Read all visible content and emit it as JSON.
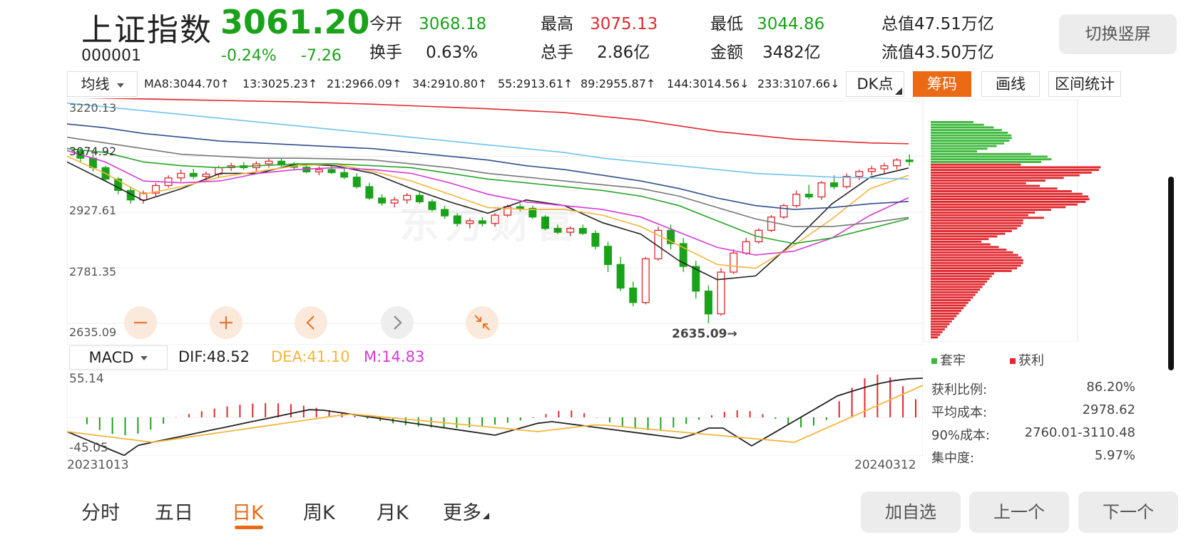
{
  "header": {
    "name": "上证指数",
    "code": "000001",
    "price": "3061.20",
    "change_pct": "-0.24%",
    "change_abs": "-7.26",
    "switch_button": "切换竖屏",
    "stats": [
      {
        "label": "今开",
        "value": "3068.18",
        "color": "#1aa21a"
      },
      {
        "label": "最高",
        "value": "3075.13",
        "color": "#e0282e"
      },
      {
        "label": "最低",
        "value": "3044.86",
        "color": "#1aa21a"
      },
      {
        "label": "总值",
        "value": "47.51万亿",
        "color": "#222222"
      },
      {
        "label": "换手",
        "value": "0.63%",
        "color": "#222222"
      },
      {
        "label": "总手",
        "value": "2.86亿",
        "color": "#222222"
      },
      {
        "label": "金额",
        "value": "3482亿",
        "color": "#222222"
      },
      {
        "label": "流值",
        "value": "43.50万亿",
        "color": "#222222"
      }
    ]
  },
  "toolbar": {
    "ma_select": "均线",
    "ma_items": [
      {
        "text": "MA8:3044.70↑",
        "color": "#333333"
      },
      {
        "text": "13:3025.23↑",
        "color": "#f5b53a"
      },
      {
        "text": "21:2966.09↑",
        "color": "#d63ad6"
      },
      {
        "text": "34:2910.80↑",
        "color": "#28a428"
      },
      {
        "text": "55:2913.61↑",
        "color": "#777777"
      },
      {
        "text": "89:2955.87↑",
        "color": "#2f4f8f"
      },
      {
        "text": "144:3014.56↓",
        "color": "#6ec3f0"
      },
      {
        "text": "233:3107.66↓",
        "color": "#e0282e"
      }
    ],
    "dk_button": "DK点",
    "chip_button": "筹码",
    "draw_button": "画线",
    "range_button": "区间统计"
  },
  "chart_data": [
    {
      "type": "candlestick",
      "title": "",
      "y_axis_labels": [
        "3220.13",
        "3074.92",
        "2927.61",
        "2781.35",
        "2635.09"
      ],
      "ylim": [
        2635.09,
        3220.13
      ],
      "low_annotation": "2635.09",
      "x_start": "20231013",
      "x_end": "20240312",
      "candles": [
        [
          3088,
          3095,
          3060,
          3070
        ],
        [
          3070,
          3080,
          3035,
          3045
        ],
        [
          3045,
          3050,
          3010,
          3015
        ],
        [
          3015,
          3020,
          2975,
          2985
        ],
        [
          2985,
          2995,
          2950,
          2960
        ],
        [
          2960,
          2985,
          2950,
          2978
        ],
        [
          2978,
          3005,
          2970,
          2998
        ],
        [
          2998,
          3025,
          2992,
          3018
        ],
        [
          3018,
          3040,
          3008,
          3030
        ],
        [
          3030,
          3042,
          3015,
          3022
        ],
        [
          3022,
          3035,
          3010,
          3028
        ],
        [
          3028,
          3050,
          3020,
          3045
        ],
        [
          3045,
          3058,
          3036,
          3050
        ],
        [
          3050,
          3060,
          3040,
          3045
        ],
        [
          3045,
          3062,
          3035,
          3055
        ],
        [
          3055,
          3070,
          3045,
          3062
        ],
        [
          3062,
          3070,
          3048,
          3052
        ],
        [
          3052,
          3060,
          3040,
          3046
        ],
        [
          3046,
          3054,
          3030,
          3034
        ],
        [
          3034,
          3048,
          3025,
          3040
        ],
        [
          3040,
          3050,
          3028,
          3032
        ],
        [
          3032,
          3042,
          3015,
          3020
        ],
        [
          3020,
          3030,
          2990,
          2995
        ],
        [
          2995,
          3005,
          2960,
          2965
        ],
        [
          2965,
          2975,
          2945,
          2952
        ],
        [
          2952,
          2968,
          2940,
          2960
        ],
        [
          2960,
          2978,
          2950,
          2972
        ],
        [
          2972,
          2980,
          2950,
          2955
        ],
        [
          2955,
          2962,
          2930,
          2935
        ],
        [
          2935,
          2945,
          2910,
          2918
        ],
        [
          2918,
          2925,
          2890,
          2898
        ],
        [
          2898,
          2912,
          2885,
          2905
        ],
        [
          2905,
          2915,
          2890,
          2898
        ],
        [
          2898,
          2925,
          2890,
          2920
        ],
        [
          2920,
          2948,
          2915,
          2942
        ],
        [
          2942,
          2950,
          2930,
          2938
        ],
        [
          2938,
          2945,
          2910,
          2915
        ],
        [
          2915,
          2920,
          2880,
          2885
        ],
        [
          2885,
          2895,
          2870,
          2875
        ],
        [
          2875,
          2890,
          2865,
          2885
        ],
        [
          2885,
          2895,
          2868,
          2872
        ],
        [
          2872,
          2880,
          2830,
          2838
        ],
        [
          2838,
          2850,
          2770,
          2790
        ],
        [
          2790,
          2810,
          2720,
          2728
        ],
        [
          2728,
          2745,
          2680,
          2690
        ],
        [
          2690,
          2810,
          2685,
          2805
        ],
        [
          2805,
          2890,
          2800,
          2880
        ],
        [
          2880,
          2895,
          2830,
          2845
        ],
        [
          2845,
          2860,
          2770,
          2785
        ],
        [
          2785,
          2800,
          2700,
          2720
        ],
        [
          2720,
          2735,
          2635,
          2660
        ],
        [
          2660,
          2780,
          2655,
          2770
        ],
        [
          2770,
          2830,
          2765,
          2820
        ],
        [
          2820,
          2860,
          2815,
          2850
        ],
        [
          2850,
          2885,
          2845,
          2880
        ],
        [
          2880,
          2920,
          2875,
          2915
        ],
        [
          2915,
          2950,
          2910,
          2945
        ],
        [
          2945,
          2985,
          2940,
          2975
        ],
        [
          2975,
          3000,
          2962,
          2968
        ],
        [
          2968,
          3010,
          2960,
          3005
        ],
        [
          3005,
          3025,
          2988,
          2995
        ],
        [
          2995,
          3030,
          2990,
          3022
        ],
        [
          3022,
          3040,
          3012,
          3035
        ],
        [
          3035,
          3050,
          3025,
          3042
        ],
        [
          3042,
          3058,
          3030,
          3050
        ],
        [
          3050,
          3070,
          3040,
          3065
        ],
        [
          3065,
          3080,
          3050,
          3061
        ]
      ],
      "ma_series": [
        {
          "name": "MA8",
          "color": "#222222",
          "values": [
            3060,
            3010,
            2958,
            2990,
            3030,
            3030,
            3055,
            3050,
            3030,
            2990,
            2955,
            2925,
            2960,
            2945,
            2900,
            2870,
            2800,
            2750,
            2760,
            2850,
            2950,
            3020,
            3044
          ]
        },
        {
          "name": "13",
          "color": "#f5b53a",
          "values": [
            3075,
            3030,
            2975,
            2995,
            3020,
            3035,
            3050,
            3055,
            3035,
            3010,
            2975,
            2940,
            2935,
            2935,
            2920,
            2890,
            2840,
            2790,
            2780,
            2840,
            2910,
            2990,
            3025
          ]
        },
        {
          "name": "21",
          "color": "#d63ad6",
          "values": [
            3090,
            3060,
            3010,
            3005,
            3010,
            3030,
            3040,
            3045,
            3040,
            3030,
            3005,
            2975,
            2955,
            2945,
            2935,
            2915,
            2875,
            2835,
            2815,
            2825,
            2860,
            2920,
            2966
          ]
        },
        {
          "name": "34",
          "color": "#28a428",
          "values": [
            3095,
            3085,
            3060,
            3050,
            3045,
            3050,
            3055,
            3055,
            3050,
            3045,
            3030,
            3015,
            3005,
            2995,
            2985,
            2970,
            2945,
            2905,
            2865,
            2845,
            2860,
            2885,
            2911
          ]
        },
        {
          "name": "55",
          "color": "#777777",
          "values": [
            3125,
            3110,
            3095,
            3080,
            3075,
            3070,
            3070,
            3068,
            3065,
            3055,
            3045,
            3030,
            3020,
            3010,
            3000,
            2990,
            2970,
            2940,
            2910,
            2890,
            2890,
            2900,
            2914
          ]
        },
        {
          "name": "89",
          "color": "#2f4f8f",
          "values": [
            3160,
            3150,
            3135,
            3125,
            3115,
            3110,
            3105,
            3100,
            3095,
            3085,
            3075,
            3065,
            3050,
            3040,
            3025,
            3010,
            2990,
            2965,
            2945,
            2935,
            2940,
            2950,
            2956
          ]
        },
        {
          "name": "144",
          "color": "#6ec3f0",
          "values": [
            3215,
            3205,
            3195,
            3185,
            3175,
            3165,
            3155,
            3145,
            3135,
            3125,
            3115,
            3105,
            3095,
            3085,
            3070,
            3060,
            3050,
            3040,
            3030,
            3025,
            3020,
            3018,
            3015
          ]
        },
        {
          "name": "233",
          "color": "#e0282e",
          "values": [
            3230,
            3228,
            3226,
            3224,
            3222,
            3220,
            3218,
            3215,
            3212,
            3208,
            3204,
            3200,
            3195,
            3190,
            3180,
            3170,
            3155,
            3140,
            3130,
            3120,
            3115,
            3110,
            3108
          ]
        }
      ]
    },
    {
      "type": "bar",
      "title": "",
      "series": [
        {
          "name": "套牢",
          "color": "#3cb83c"
        },
        {
          "name": "获利",
          "color": "#e0282e"
        }
      ]
    },
    {
      "type": "line",
      "title": "",
      "y_axis_labels": [
        "55.14",
        "-45.05"
      ],
      "ylim": [
        -45.05,
        55.14
      ]
    }
  ],
  "chip_stats": {
    "legend_trapped": "套牢",
    "legend_profit": "获利",
    "rows": [
      {
        "label": "获利比例:",
        "value": "86.20%"
      },
      {
        "label": "平均成本:",
        "value": "2978.62"
      },
      {
        "label": "90%成本:",
        "value": "2760.01-3110.48"
      },
      {
        "label": "集中度:",
        "value": "5.97%"
      }
    ]
  },
  "macd": {
    "select": "MACD",
    "dif": "DIF:48.52",
    "dea": "DEA:41.10",
    "m": "M:14.83",
    "dif_color": "#222222",
    "dea_color": "#f5b53a",
    "m_color": "#d63ad6"
  },
  "nav_tabs": [
    {
      "label": "分时"
    },
    {
      "label": "五日"
    },
    {
      "label": "日K"
    },
    {
      "label": "周K"
    },
    {
      "label": "月K"
    },
    {
      "label": "更多"
    }
  ],
  "active_tab": "日K",
  "accent_color": "#ea6a16",
  "actions": {
    "add_watch": "加自选",
    "prev": "上一个",
    "next": "下一个"
  },
  "watermark": "东方财富"
}
